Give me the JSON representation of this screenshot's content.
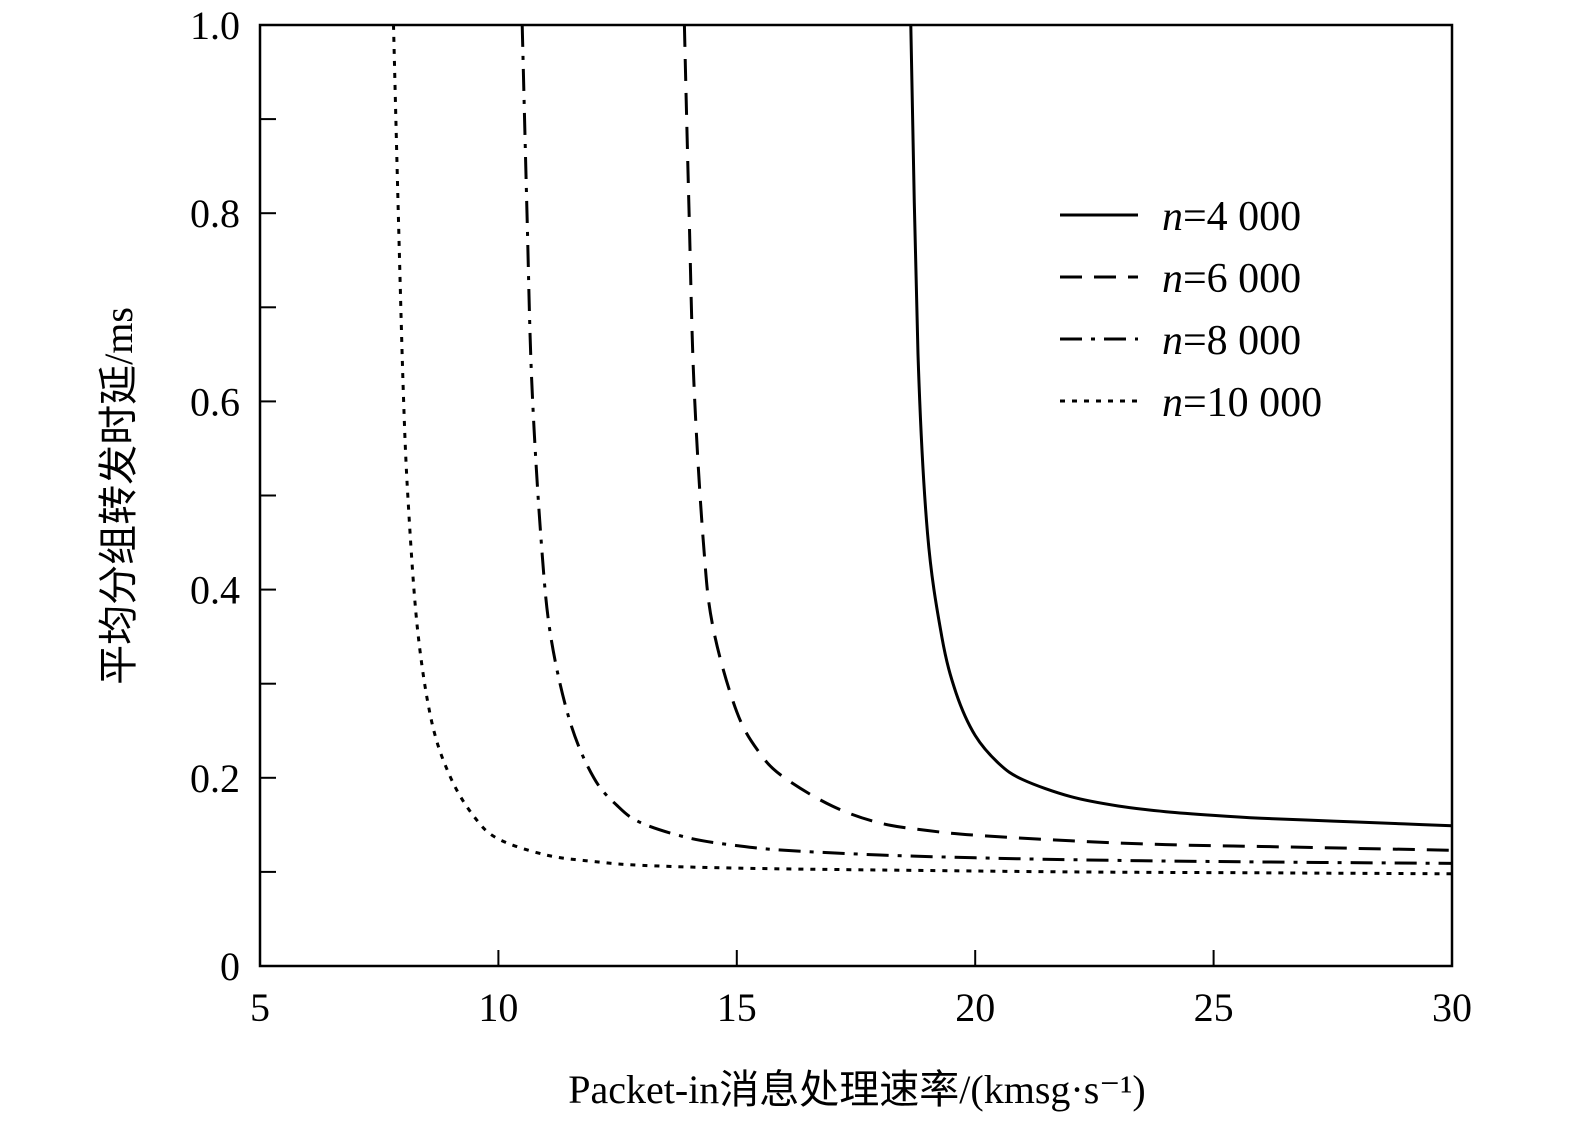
{
  "chart_data": {
    "type": "line",
    "title": "",
    "xlabel": "Packet-in消息处理速率/(kmsg·s⁻¹)",
    "ylabel": "平均分组转发时延/ms",
    "xlim": [
      5,
      30
    ],
    "ylim": [
      0,
      1.0
    ],
    "x_ticks": [
      5,
      10,
      15,
      20,
      25,
      30
    ],
    "x_tick_labels": [
      "5",
      "10",
      "15",
      "20",
      "25",
      "30"
    ],
    "y_ticks": [
      0,
      0.2,
      0.4,
      0.6,
      0.8,
      1.0
    ],
    "y_tick_labels": [
      "0",
      "0.2",
      "0.4",
      "0.6",
      "0.8",
      "1.0"
    ],
    "y_minor_ticks": [
      0.1,
      0.3,
      0.5,
      0.7,
      0.9
    ],
    "grid": false,
    "legend_position": "top-right",
    "series": [
      {
        "name": "n=4 000",
        "legend_var": "n",
        "legend_value": "=4 000",
        "style": "solid",
        "color": "#000000",
        "points": [
          [
            18.65,
            1.0
          ],
          [
            18.8,
            0.65
          ],
          [
            19.0,
            0.46
          ],
          [
            19.3,
            0.35
          ],
          [
            19.6,
            0.29
          ],
          [
            20.0,
            0.245
          ],
          [
            20.5,
            0.215
          ],
          [
            21.0,
            0.198
          ],
          [
            22.0,
            0.18
          ],
          [
            23.0,
            0.17
          ],
          [
            24.0,
            0.164
          ],
          [
            25.0,
            0.16
          ],
          [
            26.0,
            0.157
          ],
          [
            27.0,
            0.155
          ],
          [
            28.0,
            0.153
          ],
          [
            29.0,
            0.151
          ],
          [
            30.0,
            0.149
          ]
        ]
      },
      {
        "name": "n=6 000",
        "legend_var": "n",
        "legend_value": "=6 000",
        "style": "dashed",
        "color": "#000000",
        "points": [
          [
            13.9,
            1.0
          ],
          [
            14.0,
            0.8
          ],
          [
            14.1,
            0.62
          ],
          [
            14.3,
            0.45
          ],
          [
            14.5,
            0.36
          ],
          [
            15.0,
            0.27
          ],
          [
            15.5,
            0.225
          ],
          [
            16.0,
            0.2
          ],
          [
            17.0,
            0.17
          ],
          [
            18.0,
            0.152
          ],
          [
            19.0,
            0.144
          ],
          [
            20.0,
            0.139
          ],
          [
            22.0,
            0.133
          ],
          [
            24.0,
            0.129
          ],
          [
            26.0,
            0.127
          ],
          [
            28.0,
            0.125
          ],
          [
            30.0,
            0.123
          ]
        ]
      },
      {
        "name": "n=8 000",
        "legend_var": "n",
        "legend_value": "=8 000",
        "style": "dashdot",
        "color": "#000000",
        "points": [
          [
            10.5,
            1.0
          ],
          [
            10.6,
            0.8
          ],
          [
            10.7,
            0.62
          ],
          [
            10.9,
            0.45
          ],
          [
            11.1,
            0.35
          ],
          [
            11.5,
            0.26
          ],
          [
            12.0,
            0.2
          ],
          [
            12.5,
            0.17
          ],
          [
            13.0,
            0.152
          ],
          [
            14.0,
            0.136
          ],
          [
            15.0,
            0.128
          ],
          [
            16.0,
            0.123
          ],
          [
            18.0,
            0.118
          ],
          [
            20.0,
            0.115
          ],
          [
            22.0,
            0.113
          ],
          [
            25.0,
            0.111
          ],
          [
            30.0,
            0.109
          ]
        ]
      },
      {
        "name": "n=10 000",
        "legend_var": "n",
        "legend_value": "=10 000",
        "style": "dotted",
        "color": "#000000",
        "points": [
          [
            7.8,
            1.0
          ],
          [
            7.9,
            0.8
          ],
          [
            8.0,
            0.62
          ],
          [
            8.1,
            0.5
          ],
          [
            8.3,
            0.36
          ],
          [
            8.6,
            0.26
          ],
          [
            9.0,
            0.2
          ],
          [
            9.5,
            0.158
          ],
          [
            10.0,
            0.135
          ],
          [
            11.0,
            0.118
          ],
          [
            12.0,
            0.111
          ],
          [
            13.0,
            0.107
          ],
          [
            15.0,
            0.104
          ],
          [
            18.0,
            0.102
          ],
          [
            22.0,
            0.1
          ],
          [
            26.0,
            0.099
          ],
          [
            30.0,
            0.098
          ]
        ]
      }
    ]
  }
}
